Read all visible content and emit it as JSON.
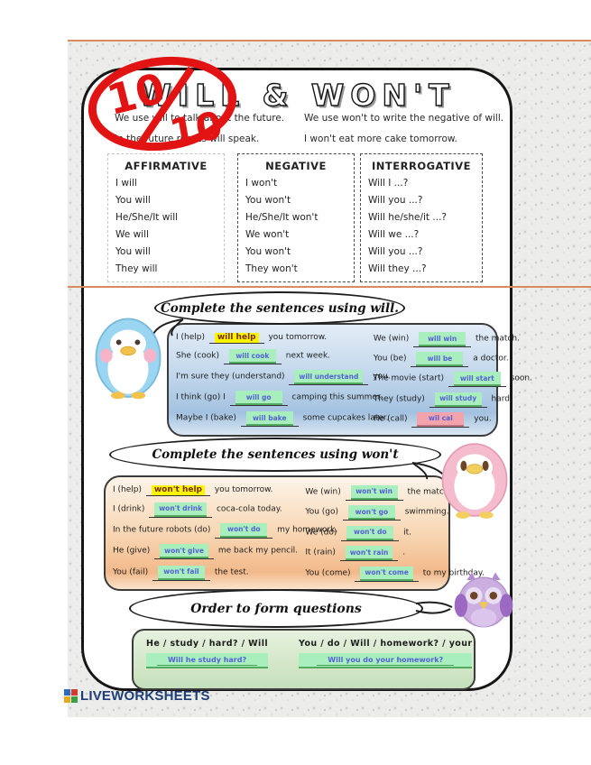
{
  "title": "WILL & WON'T",
  "score": {
    "numerator": "10",
    "denominator": "10",
    "color": "#e21313"
  },
  "intro": {
    "left_lines": [
      "We use will to talk about the future.",
      "In the future robots will speak."
    ],
    "right_lines": [
      "We use won't to write the negative of will.",
      "I won't eat more cake tomorrow."
    ]
  },
  "grammar": [
    {
      "header": "AFFIRMATIVE",
      "rows": [
        "I will",
        "You will",
        "He/She/It will",
        "We will",
        "You will",
        "They will"
      ]
    },
    {
      "header": "NEGATIVE",
      "rows": [
        "I won't",
        "You won't",
        "He/She/It won't",
        "We won't",
        "You won't",
        "They won't"
      ]
    },
    {
      "header": "INTERROGATIVE",
      "rows": [
        "Will I ...?",
        "Will you ...?",
        "Will he/she/it ...?",
        "Will we ...?",
        "Will you ...?",
        "Will they ...?"
      ]
    }
  ],
  "sections": [
    {
      "bubble": "Complete the sentences using will.",
      "rows_left": [
        {
          "pre": "I (help)",
          "answer": "will help",
          "state": "example",
          "post": "you tomorrow."
        },
        {
          "pre": "She (cook)",
          "answer": "will cook",
          "state": "correct",
          "post": "next week."
        },
        {
          "pre": "I'm sure they (understand)",
          "answer": "will understand",
          "state": "correct",
          "post": "you."
        },
        {
          "pre": "I think (go) I",
          "answer": "will go",
          "state": "correct",
          "post": "camping this summer."
        },
        {
          "pre": "Maybe I (bake)",
          "answer": "will bake",
          "state": "correct",
          "post": "some cupcakes later."
        }
      ],
      "rows_right": [
        {
          "pre": "We (win)",
          "answer": "will win",
          "state": "correct",
          "post": "the match."
        },
        {
          "pre": "You (be)",
          "answer": "will be",
          "state": "correct",
          "post": "a doctor."
        },
        {
          "pre": "The movie (start)",
          "answer": "will start",
          "state": "correct",
          "post": "soon."
        },
        {
          "pre": "They (study)",
          "answer": "will study",
          "state": "correct",
          "post": "hard."
        },
        {
          "pre": "He (call)",
          "answer": "wil cal",
          "state": "wrong",
          "post": "you."
        }
      ]
    },
    {
      "bubble": "Complete the sentences using won't",
      "rows_left": [
        {
          "pre": "I (help)",
          "answer": "won't help",
          "state": "example",
          "post": "you tomorrow."
        },
        {
          "pre": "I (drink)",
          "answer": "won't drink",
          "state": "correct",
          "post": "coca-cola today."
        },
        {
          "pre": "In the future robots (do)",
          "answer": "won't do",
          "state": "correct",
          "post": "my homework."
        },
        {
          "pre": "He (give)",
          "answer": "won't give",
          "state": "correct",
          "post": "me back my pencil."
        },
        {
          "pre": "You (fail)",
          "answer": "won't fail",
          "state": "correct",
          "post": "the test."
        }
      ],
      "rows_right": [
        {
          "pre": "We (win)",
          "answer": "won't win",
          "state": "correct",
          "post": "the match."
        },
        {
          "pre": "You (go)",
          "answer": "won't go",
          "state": "correct",
          "post": "swimming."
        },
        {
          "pre": "We (do)",
          "answer": "won't do",
          "state": "correct",
          "post": "it."
        },
        {
          "pre": "It (rain)",
          "answer": "won't rain",
          "state": "correct",
          "post": "."
        },
        {
          "pre": "You (come)",
          "answer": "won't come",
          "state": "correct",
          "post": "to my birthday."
        }
      ]
    },
    {
      "bubble": "Order to form questions",
      "questions": [
        {
          "prompt": "He / study / hard? / Will",
          "answer": "Will he study hard?"
        },
        {
          "prompt": "You / do / Will / homework? / your",
          "answer": "Will you do your homework?"
        }
      ]
    }
  ],
  "footer": {
    "logo_text": "LIVEWORKSHEETS"
  },
  "colors": {
    "separator_orange": "#d98a5f",
    "answer_green": "#a9efbe",
    "answer_wrong_pink": "#f2a3ab",
    "answer_text_blue": "#5560d6",
    "example_highlight_yellow": "#fdf400",
    "score_red": "#e21313",
    "logo_navy": "#1d3e76"
  }
}
